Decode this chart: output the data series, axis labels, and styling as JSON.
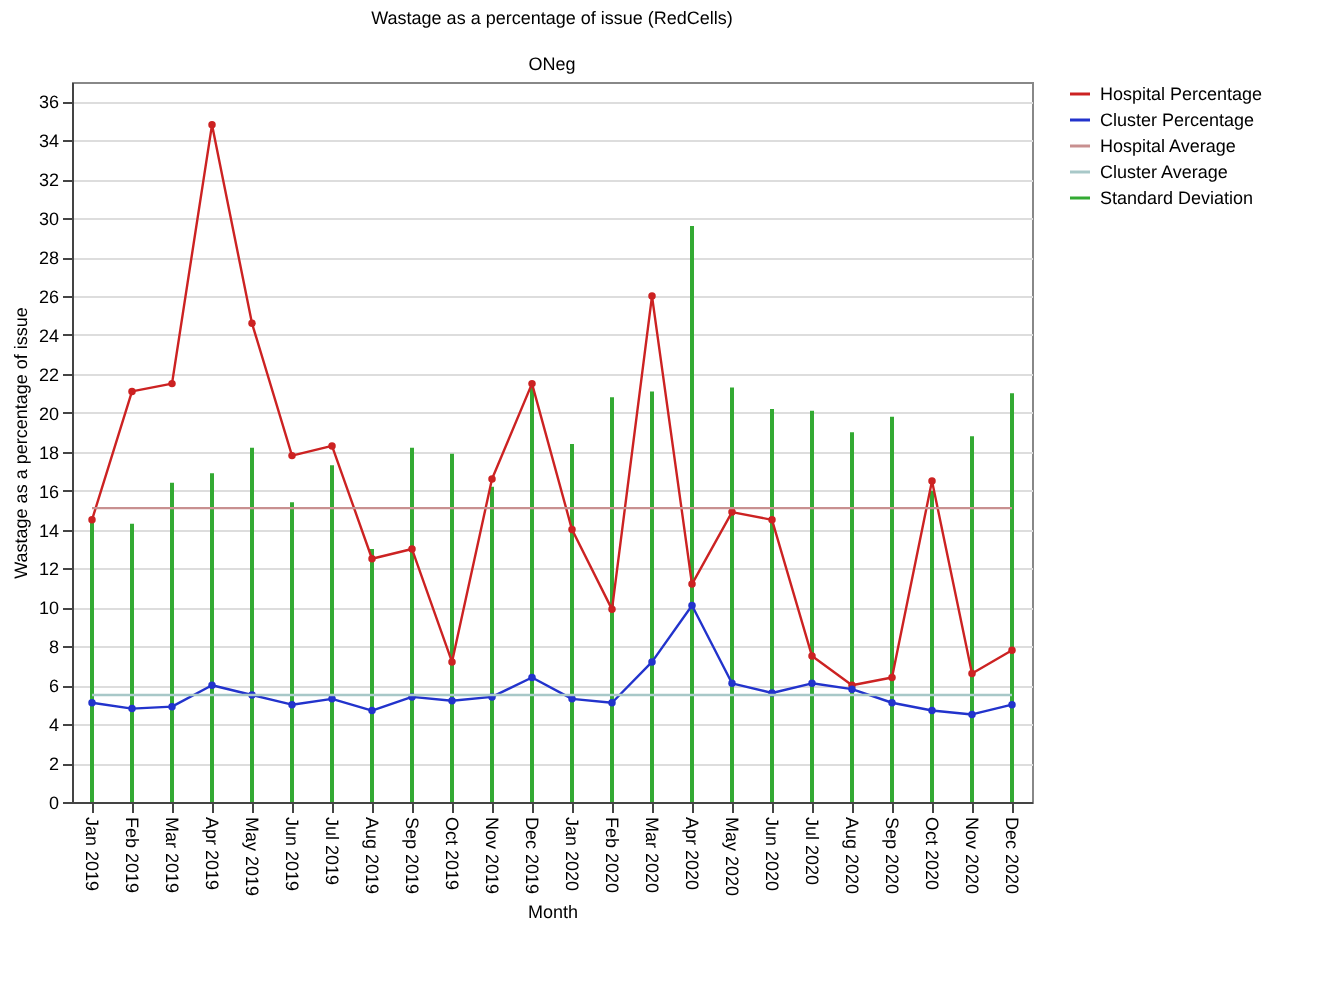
{
  "chart_data": {
    "type": "line",
    "title": "Wastage as a percentage of issue (RedCells)",
    "subtitle": "ONeg",
    "xlabel": "Month",
    "ylabel": "Wastage as a percentage of issue",
    "categories": [
      "Jan 2019",
      "Feb 2019",
      "Mar 2019",
      "Apr 2019",
      "May 2019",
      "Jun 2019",
      "Jul 2019",
      "Aug 2019",
      "Sep 2019",
      "Oct 2019",
      "Nov 2019",
      "Dec 2019",
      "Jan 2020",
      "Feb 2020",
      "Mar 2020",
      "Apr 2020",
      "May 2020",
      "Jun 2020",
      "Jul 2020",
      "Aug 2020",
      "Sep 2020",
      "Oct 2020",
      "Nov 2020",
      "Dec 2020"
    ],
    "series": [
      {
        "name": "Hospital Percentage",
        "color": "#cc2222",
        "values": [
          14.5,
          21.1,
          21.5,
          34.8,
          24.6,
          17.8,
          18.3,
          12.5,
          13.0,
          7.2,
          16.6,
          21.5,
          14.0,
          9.9,
          26.0,
          11.2,
          14.9,
          14.5,
          7.5,
          6.0,
          6.4,
          16.5,
          6.6,
          7.8
        ]
      },
      {
        "name": "Cluster Percentage",
        "color": "#2233cc",
        "values": [
          5.1,
          4.8,
          4.9,
          6.0,
          5.5,
          5.0,
          5.3,
          4.7,
          5.4,
          5.2,
          5.4,
          6.4,
          5.3,
          5.1,
          7.2,
          10.1,
          6.1,
          5.6,
          6.1,
          5.8,
          5.1,
          4.7,
          4.5,
          5.0
        ]
      },
      {
        "name": "Hospital Average",
        "color": "#c89090",
        "marker": "none",
        "values": [
          15.1,
          15.1,
          15.1,
          15.1,
          15.1,
          15.1,
          15.1,
          15.1,
          15.1,
          15.1,
          15.1,
          15.1,
          15.1,
          15.1,
          15.1,
          15.1,
          15.1,
          15.1,
          15.1,
          15.1,
          15.1,
          15.1,
          15.1,
          15.1
        ]
      },
      {
        "name": "Cluster Average",
        "color": "#a8c8c8",
        "marker": "none",
        "values": [
          5.5,
          5.5,
          5.5,
          5.5,
          5.5,
          5.5,
          5.5,
          5.5,
          5.5,
          5.5,
          5.5,
          5.5,
          5.5,
          5.5,
          5.5,
          5.5,
          5.5,
          5.5,
          5.5,
          5.5,
          5.5,
          5.5,
          5.5,
          5.5
        ]
      },
      {
        "name": "Standard Deviation",
        "color": "#33aa33",
        "type": "bar",
        "values": [
          14.5,
          14.3,
          16.4,
          16.9,
          18.2,
          15.4,
          17.3,
          13.0,
          18.2,
          17.9,
          16.2,
          21.5,
          18.4,
          20.8,
          21.1,
          29.6,
          21.3,
          20.2,
          20.1,
          19.0,
          19.8,
          16.0,
          18.8,
          21.0
        ]
      }
    ],
    "ylim": [
      0,
      37
    ],
    "yticks": [
      0,
      2,
      4,
      6,
      8,
      10,
      12,
      14,
      16,
      18,
      20,
      22,
      24,
      26,
      28,
      30,
      32,
      34,
      36
    ],
    "grid": "y",
    "legend": "top right",
    "marker": "circle",
    "line_style": "solid"
  }
}
